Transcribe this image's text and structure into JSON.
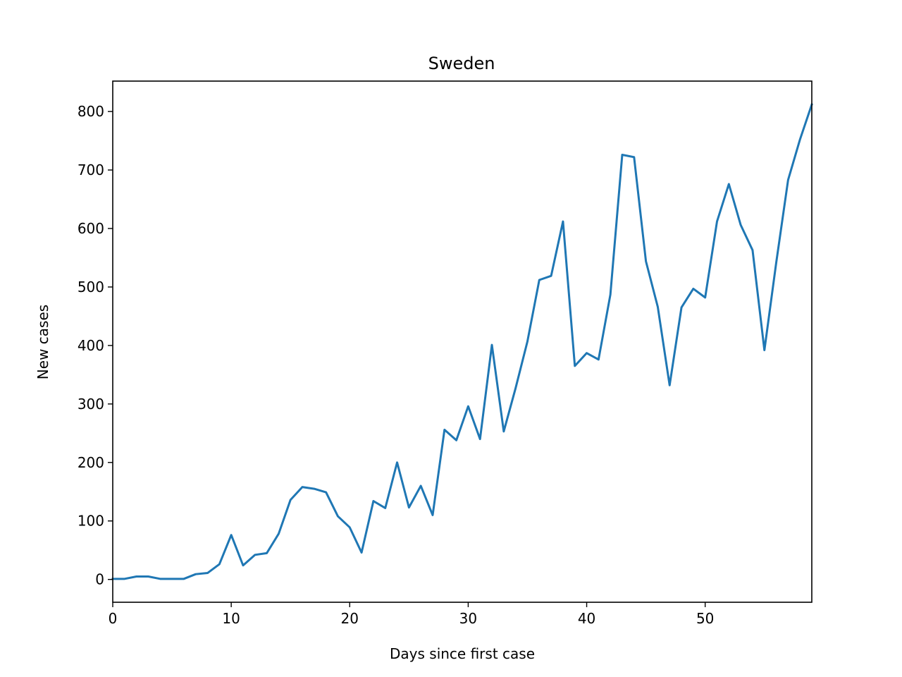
{
  "chart_data": {
    "type": "line",
    "title": "Sweden",
    "xlabel": "Days since first case",
    "ylabel": "New cases",
    "xlim": [
      0,
      59
    ],
    "ylim": [
      -39,
      852
    ],
    "xticks": [
      0,
      10,
      20,
      30,
      40,
      50
    ],
    "yticks": [
      0,
      100,
      200,
      300,
      400,
      500,
      600,
      700,
      800
    ],
    "grid": false,
    "legend": "none",
    "series": [
      {
        "color": "#1f77b4",
        "x": [
          0,
          1,
          2,
          3,
          4,
          5,
          6,
          7,
          8,
          9,
          10,
          11,
          12,
          13,
          14,
          15,
          16,
          17,
          18,
          19,
          20,
          21,
          22,
          23,
          24,
          25,
          26,
          27,
          28,
          29,
          30,
          31,
          32,
          33,
          34,
          35,
          36,
          37,
          38,
          39,
          40,
          41,
          42,
          43,
          44,
          45,
          46,
          47,
          48,
          49,
          50,
          51,
          52,
          53,
          54,
          55,
          56,
          57,
          58,
          59
        ],
        "values": [
          1,
          1,
          5,
          5,
          1,
          1,
          1,
          9,
          11,
          26,
          76,
          24,
          42,
          45,
          78,
          136,
          158,
          155,
          149,
          108,
          89,
          46,
          134,
          122,
          200,
          123,
          160,
          110,
          256,
          238,
          296,
          240,
          401,
          253,
          327,
          407,
          512,
          519,
          612,
          365,
          387,
          376,
          487,
          726,
          722,
          544,
          466,
          332,
          465,
          497,
          482,
          612,
          676,
          606,
          563,
          392,
          542,
          683,
          752,
          812
        ]
      }
    ]
  }
}
